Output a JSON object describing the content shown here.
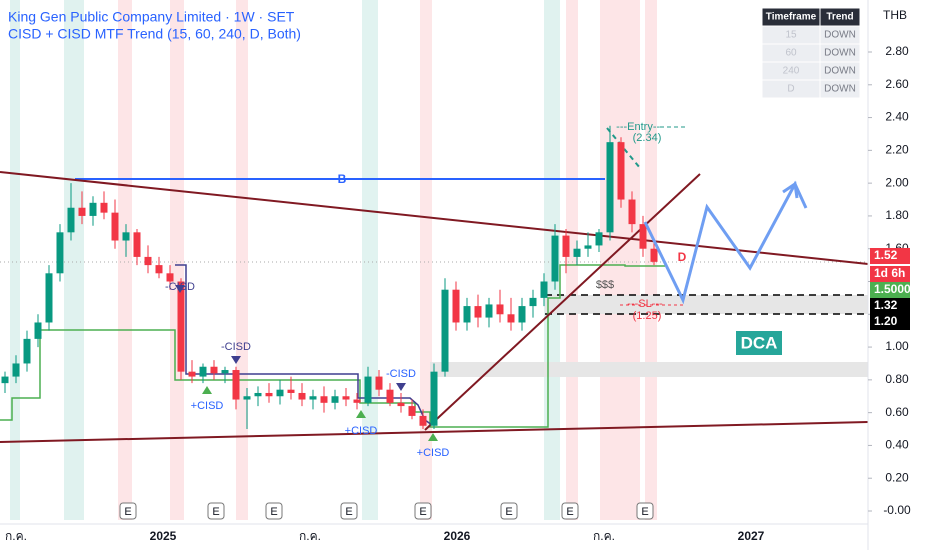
{
  "chart_data": {
    "type": "candlestick",
    "title": "King Gen Public Company Limited · 1W · SET",
    "subtitle": "CISD + CISD MTF Trend (15, 60, 240, D, Both)",
    "currency": "THB",
    "up_color": "#089981",
    "down_color": "#f23645",
    "ylim": [
      -0.07,
      3.1
    ],
    "yticks": [
      {
        "value": 2.8,
        "label": "2.80"
      },
      {
        "value": 2.6,
        "label": "2.60"
      },
      {
        "value": 2.4,
        "label": "2.40"
      },
      {
        "value": 2.2,
        "label": "2.20"
      },
      {
        "value": 2,
        "label": "2.00"
      },
      {
        "value": 1.8,
        "label": "1.80"
      },
      {
        "value": 1.6,
        "label": "1.60"
      },
      {
        "value": 1.4,
        "label": "1.40"
      },
      {
        "value": 1.2,
        "label": "1.20"
      },
      {
        "value": 1,
        "label": "1.00"
      },
      {
        "value": 0.8,
        "label": "0.80"
      },
      {
        "value": 0.6,
        "label": "0.60"
      },
      {
        "value": 0.4,
        "label": "0.40"
      },
      {
        "value": 0.2,
        "label": "0.20"
      },
      {
        "value": 0,
        "label": "-0.00"
      }
    ],
    "x_labels": [
      "ก.ค.",
      "2025",
      "ก.ค.",
      "2026",
      "ก.ค.",
      "2027"
    ],
    "open": [
      0.78,
      0.82,
      0.9,
      1.05,
      1.15,
      1.45,
      1.7,
      1.85,
      1.8,
      1.88,
      1.82,
      1.65,
      1.7,
      1.55,
      1.5,
      1.45,
      1.4,
      0.85,
      0.82,
      0.88,
      0.84,
      0.86,
      0.68,
      0.7,
      0.72,
      0.7,
      0.74,
      0.72,
      0.68,
      0.7,
      0.66,
      0.7,
      0.68,
      0.66,
      0.82,
      0.74,
      0.66,
      0.64,
      0.58,
      0.52,
      0.85,
      1.35,
      1.15,
      1.25,
      1.18,
      1.26,
      1.2,
      1.15,
      1.25,
      1.3,
      1.4,
      1.68,
      1.55,
      1.6,
      1.62,
      1.7,
      2.25,
      1.9,
      1.75,
      1.6
    ],
    "high": [
      0.85,
      0.95,
      1.1,
      1.2,
      1.5,
      1.75,
      2.0,
      1.95,
      1.92,
      1.95,
      1.9,
      1.75,
      1.72,
      1.62,
      1.55,
      1.5,
      1.42,
      0.92,
      0.9,
      0.92,
      0.88,
      0.88,
      0.75,
      0.76,
      0.78,
      0.8,
      0.82,
      0.78,
      0.74,
      0.76,
      0.74,
      0.75,
      0.72,
      0.88,
      0.86,
      0.78,
      0.72,
      0.68,
      0.62,
      0.9,
      1.42,
      1.4,
      1.3,
      1.32,
      1.3,
      1.35,
      1.3,
      1.3,
      1.35,
      1.45,
      1.75,
      1.72,
      1.65,
      1.7,
      1.72,
      2.35,
      2.28,
      1.95,
      1.8,
      1.65
    ],
    "low": [
      0.72,
      0.78,
      0.85,
      1.0,
      1.1,
      1.4,
      1.65,
      1.75,
      1.74,
      1.78,
      1.6,
      1.55,
      1.5,
      1.45,
      1.42,
      1.35,
      0.8,
      0.78,
      0.78,
      0.8,
      0.78,
      0.62,
      0.5,
      0.64,
      0.66,
      0.65,
      0.68,
      0.64,
      0.62,
      0.6,
      0.62,
      0.64,
      0.62,
      0.64,
      0.7,
      0.64,
      0.6,
      0.56,
      0.5,
      0.5,
      0.82,
      1.1,
      1.1,
      1.12,
      1.12,
      1.15,
      1.1,
      1.1,
      1.18,
      1.25,
      1.35,
      1.45,
      1.5,
      1.55,
      1.58,
      1.65,
      1.85,
      1.7,
      1.55,
      1.5
    ],
    "close": [
      0.82,
      0.9,
      1.05,
      1.15,
      1.45,
      1.7,
      1.85,
      1.8,
      1.88,
      1.82,
      1.65,
      1.7,
      1.55,
      1.5,
      1.45,
      1.4,
      0.85,
      0.82,
      0.88,
      0.84,
      0.86,
      0.68,
      0.7,
      0.72,
      0.7,
      0.74,
      0.72,
      0.68,
      0.7,
      0.66,
      0.7,
      0.68,
      0.66,
      0.82,
      0.74,
      0.66,
      0.64,
      0.58,
      0.52,
      0.85,
      1.35,
      1.15,
      1.25,
      1.18,
      1.26,
      1.2,
      1.15,
      1.25,
      1.3,
      1.4,
      1.68,
      1.55,
      1.6,
      1.62,
      1.7,
      2.25,
      1.9,
      1.75,
      1.6,
      1.52
    ],
    "annotations": {
      "b": "B",
      "d": "D",
      "entry": "---Entry---",
      "entry_price": "(2.34)",
      "sl": "---SL---",
      "sl_price": "(1.25)",
      "liquidity": "$$$",
      "dca": "DCA",
      "cisd": [
        "-CISD",
        "-CISD",
        "+CISD",
        "+CISD",
        "-CISD",
        "+CISD"
      ]
    },
    "earnings_markers": [
      "E",
      "E",
      "E",
      "E",
      "E",
      "E",
      "E",
      "E"
    ],
    "price_tags": {
      "last": "1.52",
      "countdown": "1d 6h",
      "level": "1.50000",
      "upper": "1.32",
      "lower": "1.20"
    },
    "trend_table": {
      "header": [
        "Timeframe",
        "Trend"
      ],
      "rows": [
        [
          "15",
          "DOWN"
        ],
        [
          "60",
          "DOWN"
        ],
        [
          "240",
          "DOWN"
        ],
        [
          "D",
          "DOWN"
        ]
      ]
    }
  }
}
